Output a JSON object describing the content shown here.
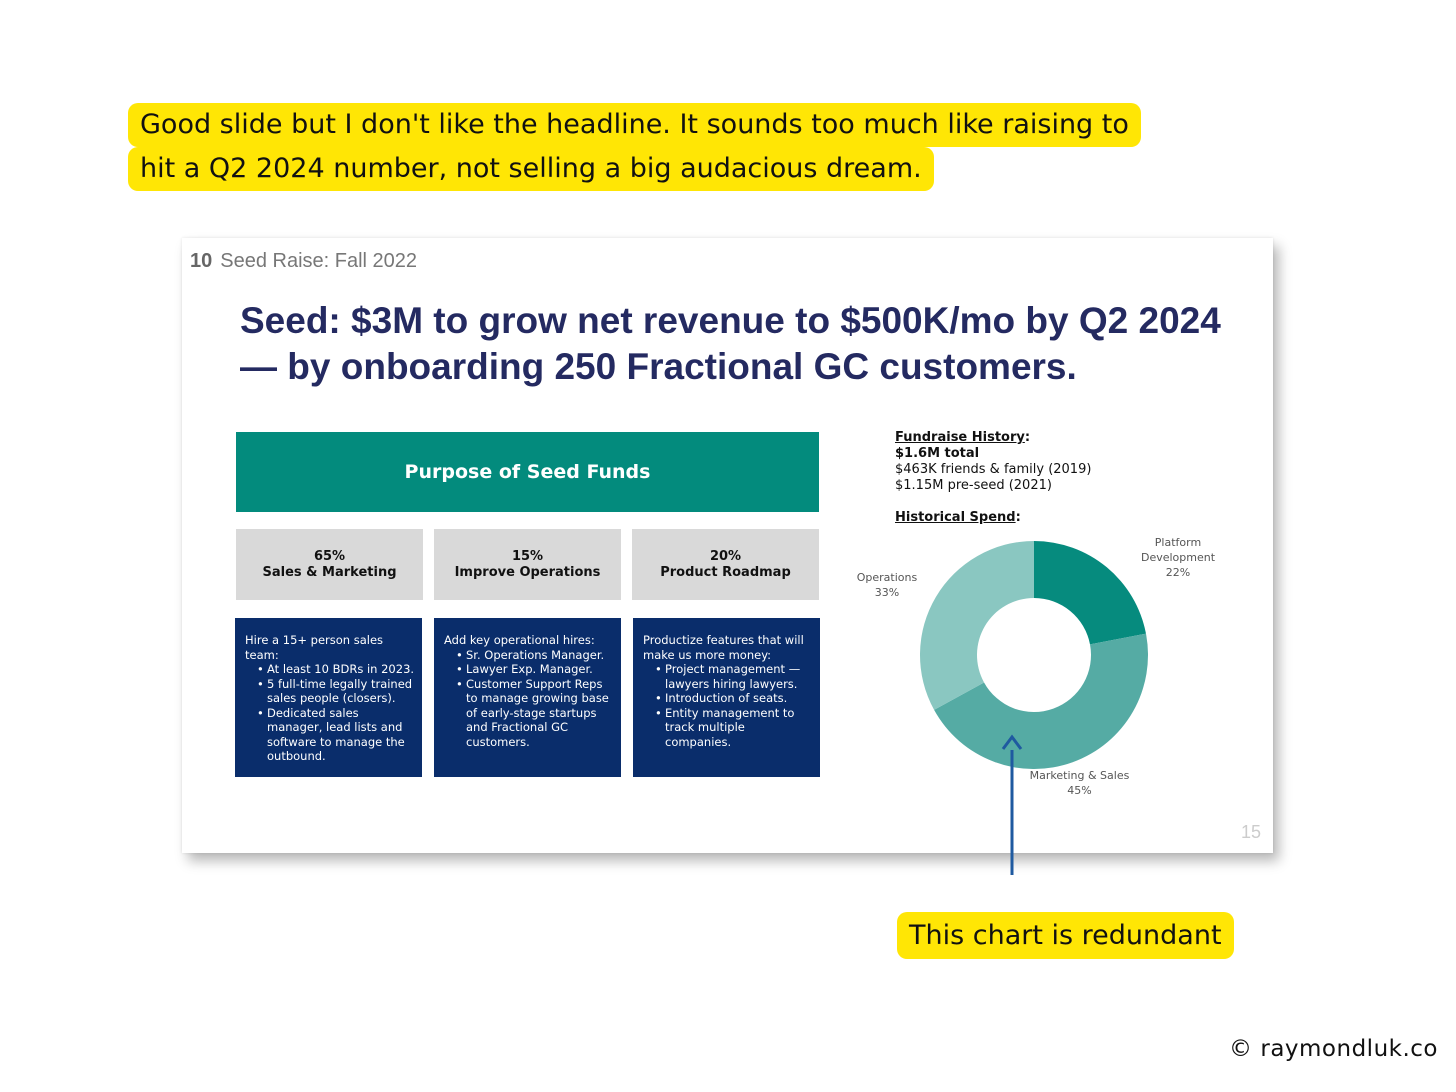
{
  "annotation_top": {
    "line1": "Good slide but I don't like the headline. It sounds too much like raising to",
    "line2": "hit a Q2 2024 number, not selling a big audacious dream."
  },
  "slide": {
    "number": "10",
    "section": "Seed Raise: Fall 2022",
    "headline_line1": "Seed: $3M to grow net revenue to $500K/mo by Q2 2024",
    "headline_line2": "— by onboarding 250 Fractional GC customers.",
    "purpose_title": "Purpose of Seed Funds",
    "categories": [
      {
        "pct": "65%",
        "label": "Sales & Marketing"
      },
      {
        "pct": "15%",
        "label": "Improve Operations"
      },
      {
        "pct": "20%",
        "label": "Product Roadmap"
      }
    ],
    "details": [
      {
        "intro": "Hire a 15+ person sales team:",
        "bullets": [
          "At least 10 BDRs in 2023.",
          "5 full-time legally trained sales people (closers).",
          "Dedicated sales manager, lead lists and software to manage the outbound."
        ]
      },
      {
        "intro": "Add key operational hires:",
        "bullets": [
          "Sr. Operations Manager.",
          "Lawyer Exp. Manager.",
          "Customer Support Reps to manage growing base of early-stage startups and Fractional GC customers."
        ]
      },
      {
        "intro": "Productize features that will make us more money:",
        "bullets": [
          "Project management — lawyers hiring lawyers.",
          "Introduction of seats.",
          "Entity management to track multiple companies."
        ]
      }
    ],
    "fundraise": {
      "title": "Fundraise History",
      "total": "$1.6M total",
      "line1": "$463K friends & family (2019)",
      "line2": "$1.15M pre-seed (2021)"
    },
    "spend_title": "Historical Spend",
    "chart_data": {
      "type": "pie",
      "title": "Historical Spend",
      "categories": [
        "Platform Development",
        "Marketing & Sales",
        "Operations"
      ],
      "values": [
        22,
        45,
        33
      ],
      "value_labels": [
        "22%",
        "45%",
        "33%"
      ],
      "colors": [
        "#068b7e",
        "#55aba4",
        "#8ac7c1"
      ]
    },
    "page_number": "15"
  },
  "annotation_bottom": "This chart is redundant",
  "credit": "© raymondluk.co"
}
